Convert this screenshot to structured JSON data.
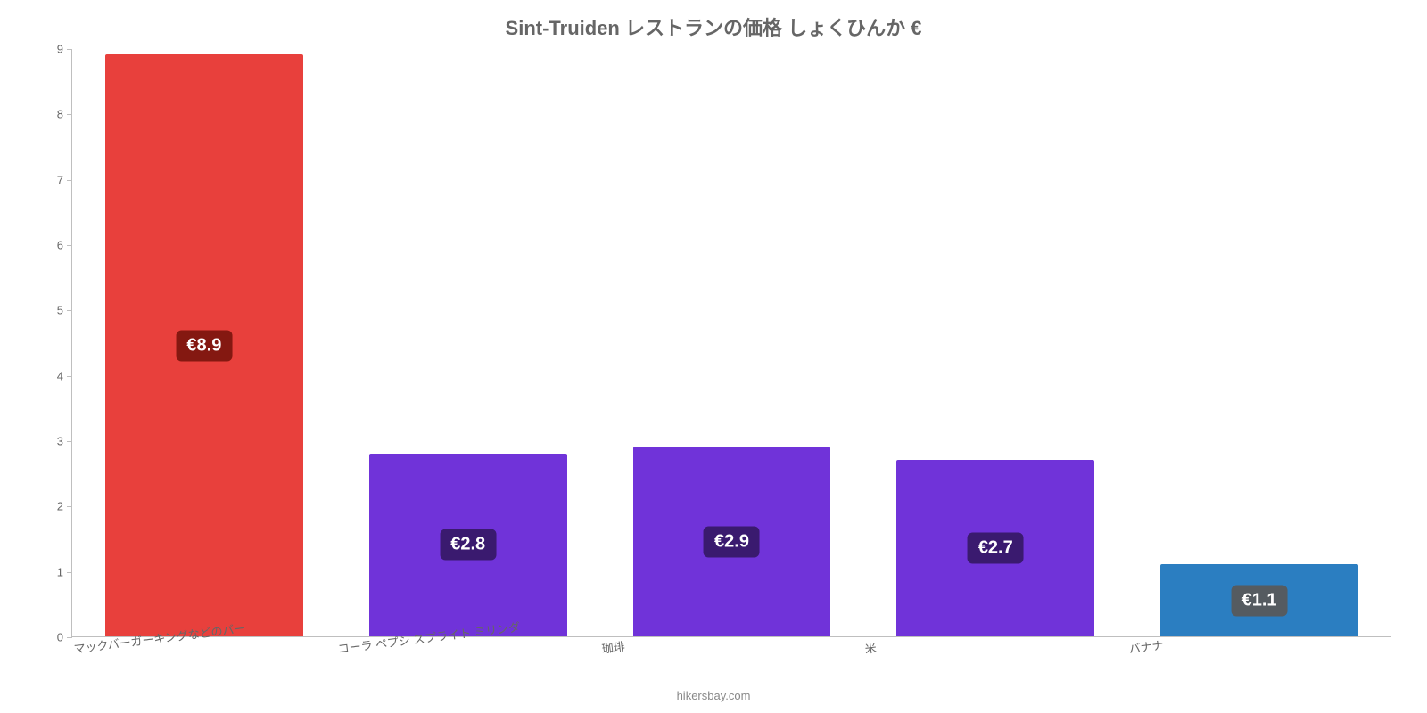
{
  "chart": {
    "type": "bar",
    "title": "Sint-Truiden レストランの価格 しょくひんか €",
    "title_fontsize": 22,
    "title_color": "#666666",
    "background_color": "#ffffff",
    "axis_color": "#bfbfbf",
    "tick_color": "#666666",
    "tick_fontsize": 13,
    "ylim": [
      0,
      9
    ],
    "ytick_step": 1,
    "yticks": [
      0,
      1,
      2,
      3,
      4,
      5,
      6,
      7,
      8,
      9
    ],
    "bar_width_pct": 75,
    "attribution": "hikersbay.com",
    "attribution_color": "#888888",
    "categories": [
      "マックバーガーキングなどのバー",
      "コーラ ペプシ スプライト ミリンダ",
      "珈琲",
      "米",
      "バナナ"
    ],
    "values": [
      8.9,
      2.8,
      2.9,
      2.7,
      1.1
    ],
    "value_labels": [
      "€8.9",
      "€2.8",
      "€2.9",
      "€2.7",
      "€1.1"
    ],
    "bar_colors": [
      "#e8403c",
      "#7033d9",
      "#7033d9",
      "#7033d9",
      "#2b7ec1"
    ],
    "badge_colors": [
      "#841811",
      "#3a1a6f",
      "#3a1a6f",
      "#3a1a6f",
      "#555b60"
    ],
    "badge_fontsize": 20,
    "badge_text_color": "#ffffff",
    "xlabel_color": "#666666",
    "xlabel_fontsize": 13
  }
}
